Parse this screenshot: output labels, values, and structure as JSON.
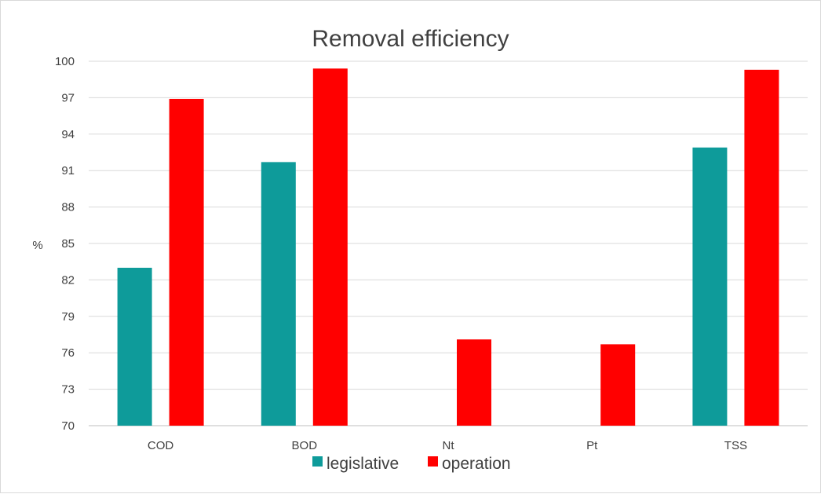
{
  "chart_data": {
    "type": "bar",
    "title": "Removal efficiency",
    "xlabel": "",
    "ylabel": "%",
    "ylim": [
      70,
      100
    ],
    "yticks": [
      "70",
      "73",
      "76",
      "79",
      "82",
      "85",
      "88",
      "91",
      "94",
      "97",
      "100"
    ],
    "categories": [
      "COD",
      "BOD",
      "Nt",
      "Pt",
      "TSS"
    ],
    "series": [
      {
        "name": "legislative",
        "color": "#0e9b9a",
        "values": [
          83.0,
          91.7,
          null,
          null,
          92.9
        ]
      },
      {
        "name": "operation",
        "color": "#ff0000",
        "values": [
          96.9,
          99.4,
          77.1,
          76.7,
          99.3
        ]
      }
    ],
    "grid": true,
    "legend_position": "bottom"
  }
}
